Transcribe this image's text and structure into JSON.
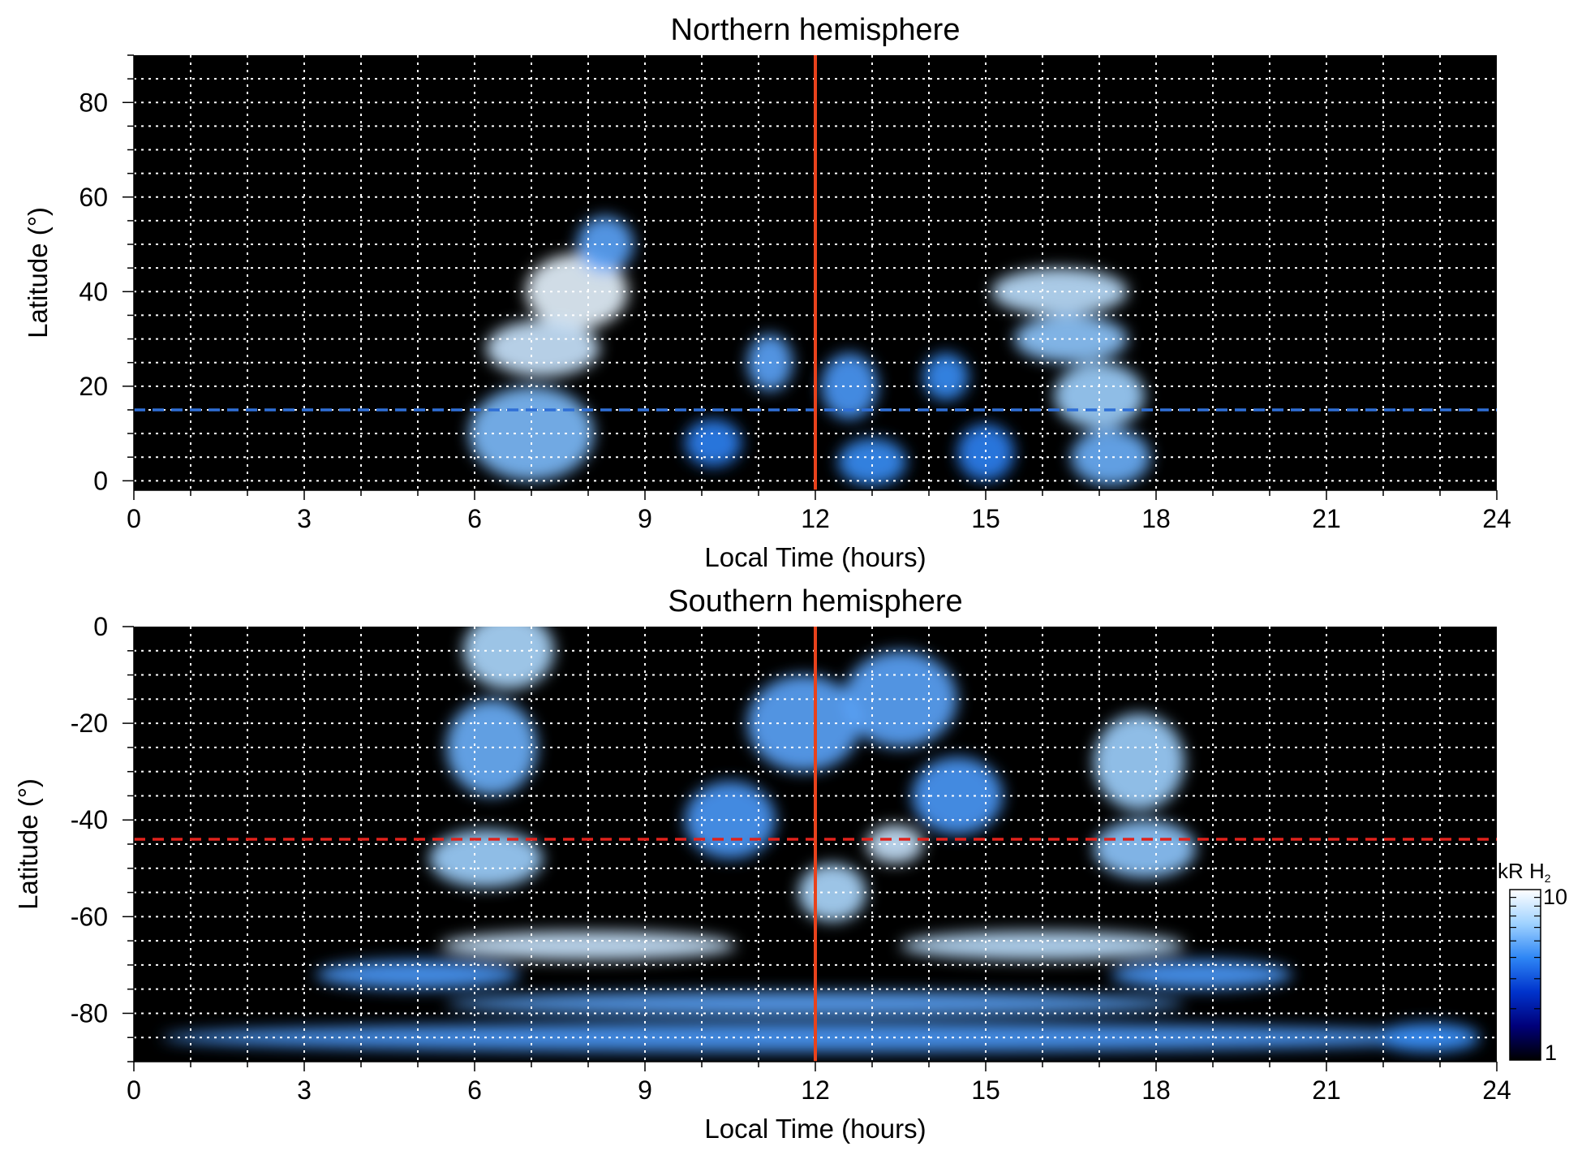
{
  "chart_data": [
    {
      "type": "heatmap",
      "title": "Northern hemisphere",
      "xlabel": "Local Time (hours)",
      "ylabel": "Latitude (°)",
      "xlim": [
        0,
        24
      ],
      "ylim": [
        -2,
        90
      ],
      "xticks": [
        0,
        3,
        6,
        9,
        12,
        15,
        18,
        21,
        24
      ],
      "yticks": [
        0,
        20,
        40,
        60,
        80
      ],
      "grid": true,
      "background": "#000000",
      "reference_lines": {
        "vertical": {
          "x": 12,
          "color": "#e8421c"
        },
        "horizontal": {
          "y": 15,
          "color": "#2f6fd6",
          "style": "dashed"
        }
      },
      "emission_blobs": [
        {
          "lt": 7.8,
          "lat": 40,
          "dlt": 0.9,
          "dlat": 8,
          "intensity": 1.0
        },
        {
          "lt": 7.2,
          "lat": 28,
          "dlt": 1.0,
          "dlat": 6,
          "intensity": 0.9
        },
        {
          "lt": 7.0,
          "lat": 10,
          "dlt": 1.1,
          "dlat": 10,
          "intensity": 0.65
        },
        {
          "lt": 8.3,
          "lat": 50,
          "dlt": 0.5,
          "dlat": 6,
          "intensity": 0.55
        },
        {
          "lt": 16.3,
          "lat": 40,
          "dlt": 1.2,
          "dlat": 5,
          "intensity": 0.85
        },
        {
          "lt": 16.5,
          "lat": 30,
          "dlt": 1.0,
          "dlat": 5,
          "intensity": 0.7
        },
        {
          "lt": 17.0,
          "lat": 18,
          "dlt": 0.8,
          "dlat": 7,
          "intensity": 0.75
        },
        {
          "lt": 17.2,
          "lat": 5,
          "dlt": 0.7,
          "dlat": 6,
          "intensity": 0.6
        },
        {
          "lt": 11.2,
          "lat": 25,
          "dlt": 0.4,
          "dlat": 6,
          "intensity": 0.55
        },
        {
          "lt": 12.6,
          "lat": 20,
          "dlt": 0.5,
          "dlat": 7,
          "intensity": 0.5
        },
        {
          "lt": 14.3,
          "lat": 22,
          "dlt": 0.4,
          "dlat": 5,
          "intensity": 0.45
        },
        {
          "lt": 13.0,
          "lat": 4,
          "dlt": 0.6,
          "dlat": 5,
          "intensity": 0.45
        },
        {
          "lt": 10.2,
          "lat": 8,
          "dlt": 0.5,
          "dlat": 5,
          "intensity": 0.4
        },
        {
          "lt": 15.0,
          "lat": 6,
          "dlt": 0.5,
          "dlat": 6,
          "intensity": 0.4
        }
      ]
    },
    {
      "type": "heatmap",
      "title": "Southern hemisphere",
      "xlabel": "Local Time (hours)",
      "ylabel": "Latitude (°)",
      "xlim": [
        0,
        24
      ],
      "ylim": [
        -90,
        0
      ],
      "xticks": [
        0,
        3,
        6,
        9,
        12,
        15,
        18,
        21,
        24
      ],
      "yticks": [
        0,
        -20,
        -40,
        -60,
        -80
      ],
      "grid": true,
      "background": "#000000",
      "reference_lines": {
        "vertical": {
          "x": 12,
          "color": "#e8421c"
        },
        "horizontal": {
          "y": -44,
          "color": "#e0221c",
          "style": "dashed"
        }
      },
      "emission_blobs": [
        {
          "lt": 6.6,
          "lat": -5,
          "dlt": 0.8,
          "dlat": 8,
          "intensity": 0.8
        },
        {
          "lt": 6.3,
          "lat": -25,
          "dlt": 0.8,
          "dlat": 10,
          "intensity": 0.6
        },
        {
          "lt": 6.2,
          "lat": -48,
          "dlt": 1.0,
          "dlat": 6,
          "intensity": 0.75
        },
        {
          "lt": 8.0,
          "lat": -66,
          "dlt": 2.6,
          "dlat": 3,
          "intensity": 0.9
        },
        {
          "lt": 5.0,
          "lat": -72,
          "dlt": 1.8,
          "dlat": 3,
          "intensity": 0.5
        },
        {
          "lt": 17.7,
          "lat": -28,
          "dlt": 0.8,
          "dlat": 10,
          "intensity": 0.75
        },
        {
          "lt": 17.8,
          "lat": -46,
          "dlt": 0.9,
          "dlat": 6,
          "intensity": 0.7
        },
        {
          "lt": 16.0,
          "lat": -66,
          "dlt": 2.5,
          "dlat": 3,
          "intensity": 0.85
        },
        {
          "lt": 18.8,
          "lat": -72,
          "dlt": 1.6,
          "dlat": 3,
          "intensity": 0.5
        },
        {
          "lt": 13.4,
          "lat": -45,
          "dlt": 0.5,
          "dlat": 4,
          "intensity": 0.9
        },
        {
          "lt": 12.3,
          "lat": -55,
          "dlt": 0.6,
          "dlat": 6,
          "intensity": 0.8
        },
        {
          "lt": 11.8,
          "lat": -20,
          "dlt": 1.0,
          "dlat": 10,
          "intensity": 0.55
        },
        {
          "lt": 13.5,
          "lat": -15,
          "dlt": 1.0,
          "dlat": 10,
          "intensity": 0.55
        },
        {
          "lt": 10.5,
          "lat": -40,
          "dlt": 0.8,
          "dlat": 8,
          "intensity": 0.5
        },
        {
          "lt": 14.5,
          "lat": -35,
          "dlt": 0.8,
          "dlat": 8,
          "intensity": 0.5
        },
        {
          "lt": 12.0,
          "lat": -78,
          "dlt": 6.5,
          "dlat": 2.5,
          "intensity": 0.55
        },
        {
          "lt": 12.0,
          "lat": -85,
          "dlt": 11.5,
          "dlat": 3,
          "intensity": 0.5
        },
        {
          "lt": 22.8,
          "lat": -85,
          "dlt": 0.9,
          "dlat": 3,
          "intensity": 0.45
        }
      ]
    }
  ],
  "colorbar": {
    "label_main": "kR H",
    "label_sub": "2",
    "min_label": "1",
    "max_label": "10",
    "colors": [
      "#000000",
      "#00007a",
      "#0033cc",
      "#2e86f5",
      "#9fd2ff",
      "#ffffff"
    ]
  }
}
